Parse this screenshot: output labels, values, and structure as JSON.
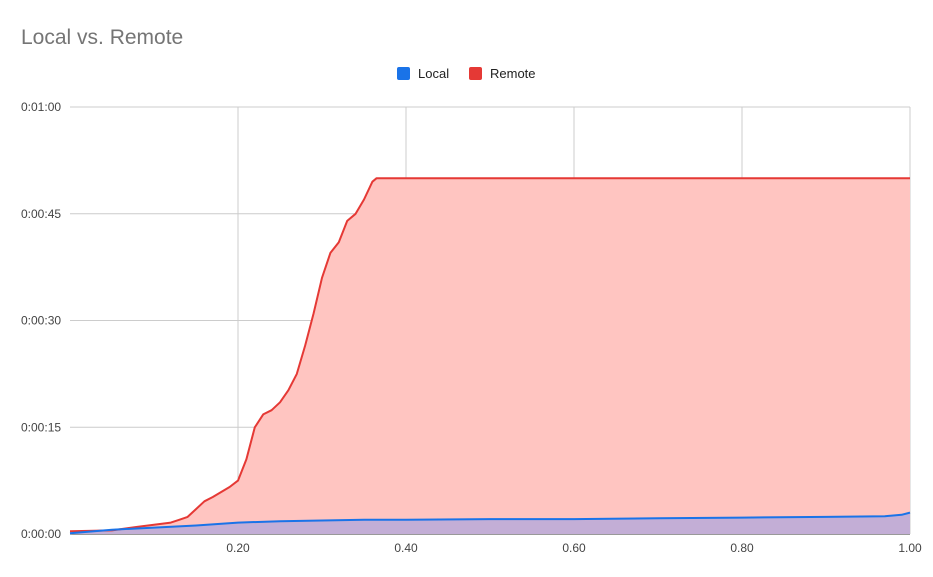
{
  "chart_data": {
    "type": "area",
    "title": "Local vs. Remote",
    "legend_position": "top-center",
    "grid": true,
    "xlim": [
      0,
      1
    ],
    "ylim_seconds": [
      0,
      60
    ],
    "x_ticks": [
      {
        "value": 0.2,
        "label": "0.20"
      },
      {
        "value": 0.4,
        "label": "0.40"
      },
      {
        "value": 0.6,
        "label": "0.60"
      },
      {
        "value": 0.8,
        "label": "0.80"
      },
      {
        "value": 1.0,
        "label": "1.00"
      }
    ],
    "y_ticks": [
      {
        "value": 0,
        "label": "0:00:00"
      },
      {
        "value": 15,
        "label": "0:00:15"
      },
      {
        "value": 30,
        "label": "0:00:30"
      },
      {
        "value": 45,
        "label": "0:00:45"
      },
      {
        "value": 60,
        "label": "0:01:00"
      }
    ],
    "series": [
      {
        "name": "Local",
        "color": "#1a73e8",
        "fill": "#b9a9d9",
        "points": [
          [
            0,
            0.1
          ],
          [
            0.05,
            0.6
          ],
          [
            0.1,
            0.9
          ],
          [
            0.15,
            1.2
          ],
          [
            0.2,
            1.6
          ],
          [
            0.25,
            1.8
          ],
          [
            0.3,
            1.9
          ],
          [
            0.35,
            2.0
          ],
          [
            0.4,
            2.0
          ],
          [
            0.5,
            2.1
          ],
          [
            0.6,
            2.1
          ],
          [
            0.7,
            2.2
          ],
          [
            0.8,
            2.3
          ],
          [
            0.9,
            2.4
          ],
          [
            0.97,
            2.5
          ],
          [
            0.99,
            2.7
          ],
          [
            1.0,
            3.0
          ]
        ]
      },
      {
        "name": "Remote",
        "color": "#e53935",
        "fill": "#ffc5c1",
        "points": [
          [
            0,
            0.4
          ],
          [
            0.05,
            0.5
          ],
          [
            0.08,
            1.0
          ],
          [
            0.1,
            1.3
          ],
          [
            0.12,
            1.6
          ],
          [
            0.13,
            2.0
          ],
          [
            0.14,
            2.4
          ],
          [
            0.15,
            3.5
          ],
          [
            0.16,
            4.6
          ],
          [
            0.17,
            5.2
          ],
          [
            0.18,
            5.9
          ],
          [
            0.19,
            6.6
          ],
          [
            0.2,
            7.5
          ],
          [
            0.21,
            10.5
          ],
          [
            0.22,
            15.0
          ],
          [
            0.23,
            16.8
          ],
          [
            0.24,
            17.4
          ],
          [
            0.25,
            18.5
          ],
          [
            0.26,
            20.2
          ],
          [
            0.27,
            22.5
          ],
          [
            0.28,
            26.5
          ],
          [
            0.29,
            31.0
          ],
          [
            0.3,
            36.0
          ],
          [
            0.31,
            39.5
          ],
          [
            0.32,
            41.0
          ],
          [
            0.33,
            44.0
          ],
          [
            0.34,
            45.0
          ],
          [
            0.35,
            47.0
          ],
          [
            0.36,
            49.5
          ],
          [
            0.365,
            50.0
          ],
          [
            0.4,
            50.0
          ],
          [
            0.6,
            50.0
          ],
          [
            0.8,
            50.0
          ],
          [
            1.0,
            50.0
          ]
        ]
      }
    ]
  }
}
